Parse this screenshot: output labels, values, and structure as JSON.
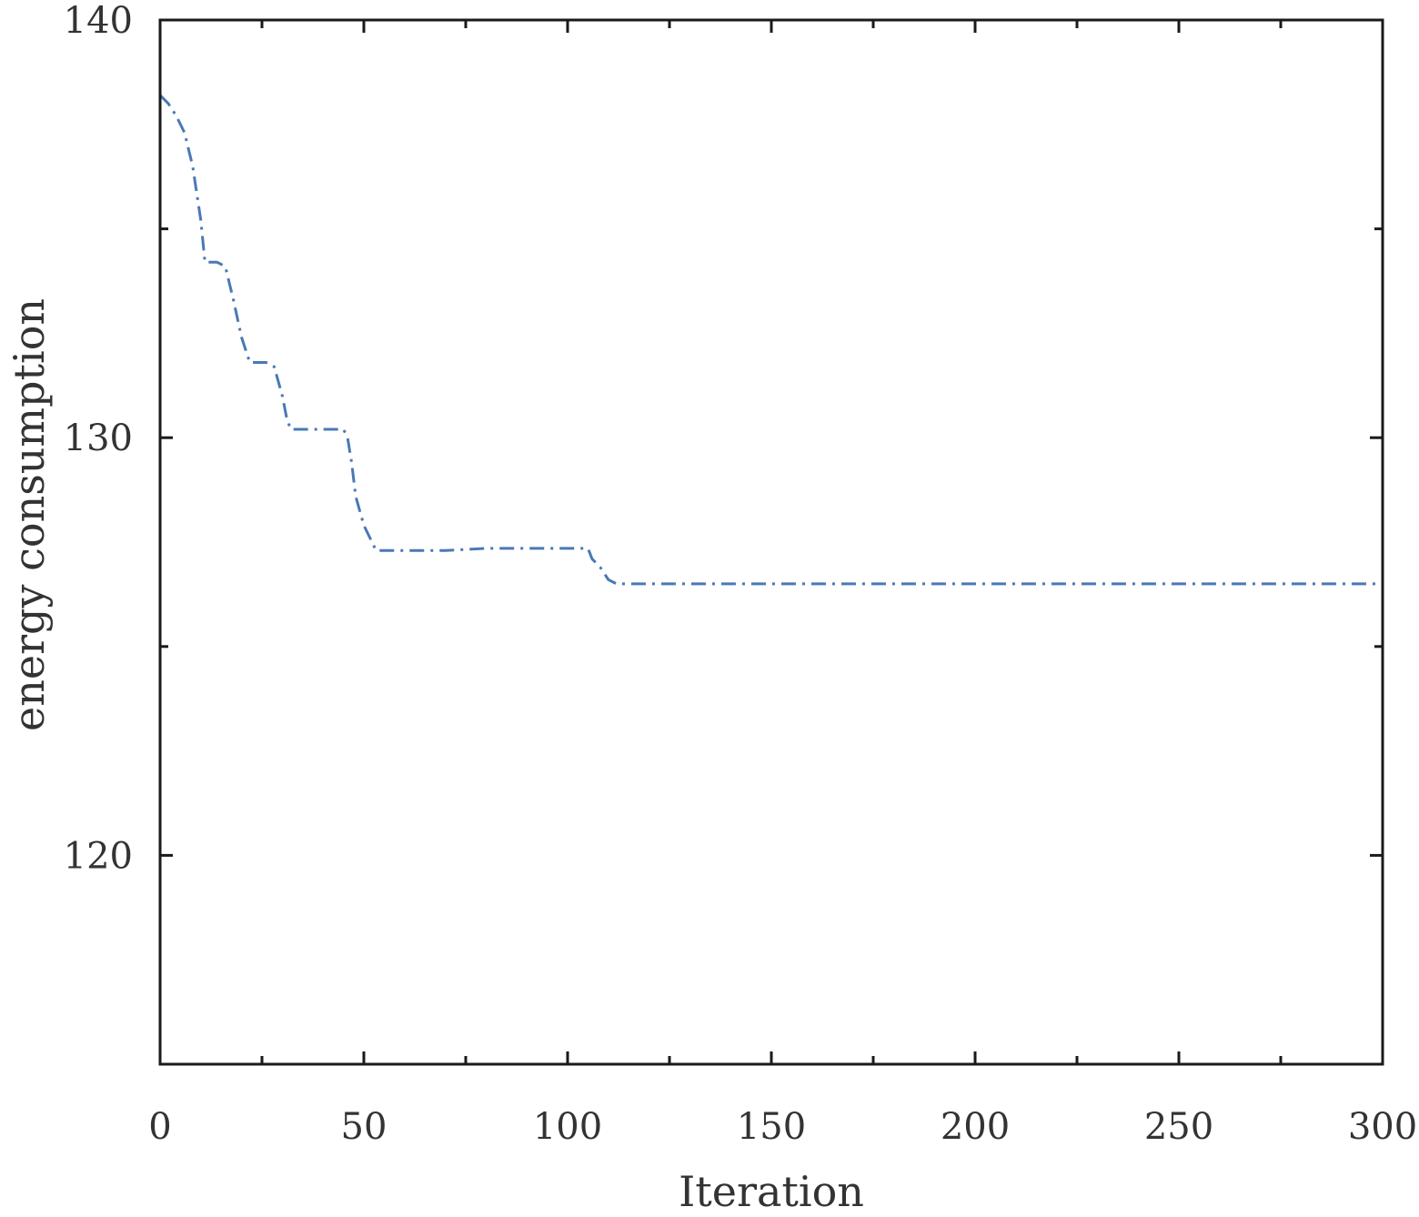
{
  "chart_data": {
    "type": "line",
    "title": "",
    "xlabel": "Iteration",
    "ylabel": "energy consumption",
    "xlim": [
      0,
      300
    ],
    "ylim": [
      115,
      140
    ],
    "x_ticks": [
      0,
      50,
      100,
      150,
      200,
      250,
      300
    ],
    "y_ticks": [
      120,
      130,
      140
    ],
    "x_tick_labels": [
      "0",
      "50",
      "100",
      "150",
      "200",
      "250",
      "300"
    ],
    "y_tick_labels": [
      "120",
      "130",
      "140"
    ],
    "grid": false,
    "legend": "none",
    "series": [
      {
        "color": "#4a78b5",
        "line_style": "dash-dot",
        "x": [
          0,
          2,
          4,
          6,
          8,
          10,
          11,
          12,
          14,
          16,
          18,
          20,
          22,
          24,
          26,
          28,
          30,
          31,
          32,
          34,
          40,
          45,
          46,
          47,
          48,
          50,
          52,
          53,
          55,
          60,
          70,
          80,
          90,
          100,
          105,
          106,
          108,
          110,
          112,
          113,
          120,
          150,
          200,
          250,
          300
        ],
        "y": [
          138.2,
          138.0,
          137.7,
          137.3,
          136.5,
          135.2,
          134.2,
          134.2,
          134.2,
          134.1,
          133.3,
          132.4,
          131.8,
          131.8,
          131.8,
          131.7,
          131.0,
          130.5,
          130.2,
          130.2,
          130.2,
          130.2,
          130.0,
          129.4,
          128.6,
          127.9,
          127.5,
          127.3,
          127.3,
          127.3,
          127.3,
          127.35,
          127.35,
          127.35,
          127.35,
          127.1,
          126.9,
          126.6,
          126.5,
          126.5,
          126.5,
          126.5,
          126.5,
          126.5,
          126.5
        ]
      }
    ]
  }
}
